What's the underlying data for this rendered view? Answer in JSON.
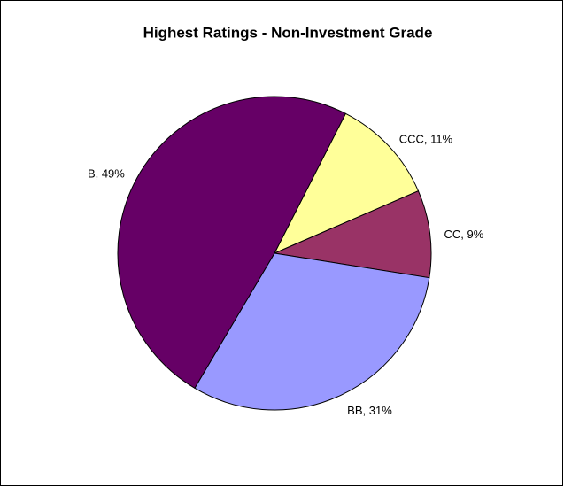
{
  "chart_data": {
    "type": "pie",
    "title": "Highest Ratings - Non-Investment Grade",
    "values": [
      11,
      9,
      31,
      49
    ],
    "value_labels": [
      "CCC, 11%",
      "CC, 9%",
      "BB, 31%",
      "B, 49%"
    ],
    "colors": [
      "#ffff99",
      "#993366",
      "#9999ff",
      "#660066"
    ]
  }
}
